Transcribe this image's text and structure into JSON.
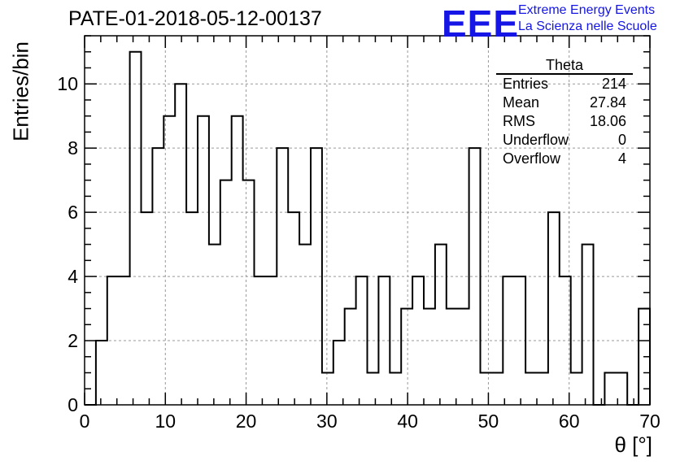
{
  "header": {
    "title": "PATE-01-2018-05-12-00137",
    "logo_mark": "EEE",
    "logo_line1": "Extreme Energy Events",
    "logo_line2": "La Scienza nelle Scuole",
    "brand_color": "#1515e6"
  },
  "stats": {
    "title": "Theta",
    "rows": [
      {
        "label": "Entries",
        "value": "214"
      },
      {
        "label": "Mean",
        "value": "27.84"
      },
      {
        "label": "RMS",
        "value": "18.06"
      },
      {
        "label": "Underflow",
        "value": "0"
      },
      {
        "label": "Overflow",
        "value": "4"
      }
    ]
  },
  "chart_data": {
    "type": "bar",
    "title": "PATE-01-2018-05-12-00137",
    "xlabel": "θ [°]",
    "ylabel": "Entries/bin",
    "xlim": [
      0,
      70
    ],
    "ylim": [
      0,
      11.5
    ],
    "bin_width": 1.4,
    "x_ticks": [
      0,
      10,
      20,
      30,
      40,
      50,
      60,
      70
    ],
    "y_ticks": [
      0,
      2,
      4,
      6,
      8,
      10
    ],
    "grid": true,
    "values": [
      0,
      2,
      4,
      4,
      11,
      6,
      8,
      9,
      10,
      6,
      9,
      5,
      7,
      9,
      7,
      4,
      4,
      8,
      6,
      5,
      8,
      1,
      2,
      3,
      4,
      1,
      4,
      1,
      3,
      4,
      3,
      5,
      3,
      3,
      8,
      1,
      1,
      4,
      4,
      1,
      1,
      6,
      4,
      1,
      5,
      0,
      1,
      1,
      0,
      3
    ]
  }
}
